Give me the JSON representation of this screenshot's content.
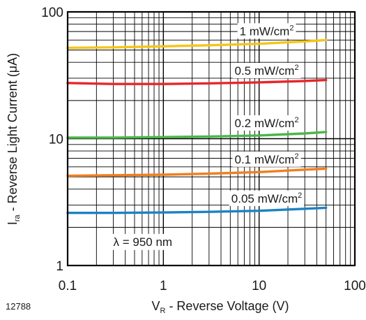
{
  "figure_id": "12788",
  "chart_data": {
    "type": "line",
    "xlabel_main": "V",
    "xlabel_sub": "R",
    "xlabel_rest": " - Reverse Voltage (V)",
    "ylabel_main": "I",
    "ylabel_sub": "ra",
    "ylabel_rest": " -  Reverse Light Current (μA)",
    "xscale": "log",
    "yscale": "log",
    "xlim": [
      0.1,
      100
    ],
    "ylim": [
      1,
      100
    ],
    "xticks": [
      0.1,
      1,
      10,
      100
    ],
    "xtick_labels": [
      "0.1",
      "1",
      "10",
      "100"
    ],
    "yticks": [
      1,
      10,
      100
    ],
    "ytick_labels": [
      "1",
      "10",
      "100"
    ],
    "grid": true,
    "annotation": "λ = 950 nm",
    "series": [
      {
        "name": "1 mW/cm",
        "sup": "2",
        "color": "#f5c518",
        "x": [
          0.1,
          0.3,
          1,
          3,
          10,
          30,
          50
        ],
        "y": [
          52,
          52.5,
          53.5,
          54.5,
          56,
          58.5,
          60
        ]
      },
      {
        "name": "0.5 mW/cm",
        "sup": "2",
        "color": "#e8262a",
        "x": [
          0.1,
          0.3,
          1,
          3,
          10,
          30,
          50
        ],
        "y": [
          27.5,
          27,
          27,
          27.3,
          27.8,
          28.5,
          29
        ]
      },
      {
        "name": "0.2 mW/cm",
        "sup": "2",
        "color": "#4bb748",
        "x": [
          0.1,
          0.3,
          1,
          3,
          10,
          30,
          50
        ],
        "y": [
          10.2,
          10.2,
          10.3,
          10.4,
          10.6,
          11,
          11.3
        ]
      },
      {
        "name": "0.1 mW/cm",
        "sup": "2",
        "color": "#f07f1f",
        "x": [
          0.1,
          0.3,
          1,
          3,
          10,
          30,
          50
        ],
        "y": [
          5.1,
          5.15,
          5.2,
          5.3,
          5.45,
          5.7,
          5.8
        ]
      },
      {
        "name": "0.05 mW/cm",
        "sup": "2",
        "color": "#1b82c4",
        "x": [
          0.1,
          0.3,
          1,
          3,
          10,
          30,
          50
        ],
        "y": [
          2.6,
          2.6,
          2.62,
          2.65,
          2.7,
          2.8,
          2.85
        ]
      }
    ]
  }
}
